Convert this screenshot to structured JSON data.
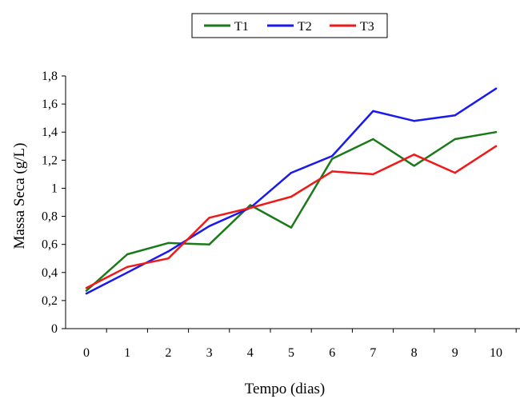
{
  "chart_data": {
    "type": "line",
    "xlabel": "Tempo (dias)",
    "ylabel": "Massa Seca (g/L)",
    "x": [
      0,
      1,
      2,
      3,
      4,
      5,
      6,
      7,
      8,
      9,
      10
    ],
    "x_tick_labels": [
      "0",
      "1",
      "2",
      "3",
      "4",
      "5",
      "6",
      "7",
      "8",
      "9",
      "10"
    ],
    "y_tick_labels": [
      "0",
      "0,2",
      "0,4",
      "0,6",
      "0,8",
      "1",
      "1,2",
      "1,4",
      "1,6",
      "1,8"
    ],
    "ylim": [
      0,
      1.8
    ],
    "grid": false,
    "legend_position": "top-center",
    "series": [
      {
        "name": "T1",
        "color": "#1a7a1a",
        "values": [
          0.27,
          0.53,
          0.61,
          0.6,
          0.88,
          0.72,
          1.21,
          1.35,
          1.16,
          1.35,
          1.4
        ]
      },
      {
        "name": "T2",
        "color": "#1a1aee",
        "values": [
          0.25,
          0.4,
          0.55,
          0.73,
          0.86,
          1.11,
          1.23,
          1.55,
          1.48,
          1.52,
          1.71
        ]
      },
      {
        "name": "T3",
        "color": "#ee1a1a",
        "values": [
          0.29,
          0.44,
          0.5,
          0.79,
          0.86,
          0.94,
          1.12,
          1.1,
          1.24,
          1.11,
          1.3
        ]
      }
    ]
  }
}
